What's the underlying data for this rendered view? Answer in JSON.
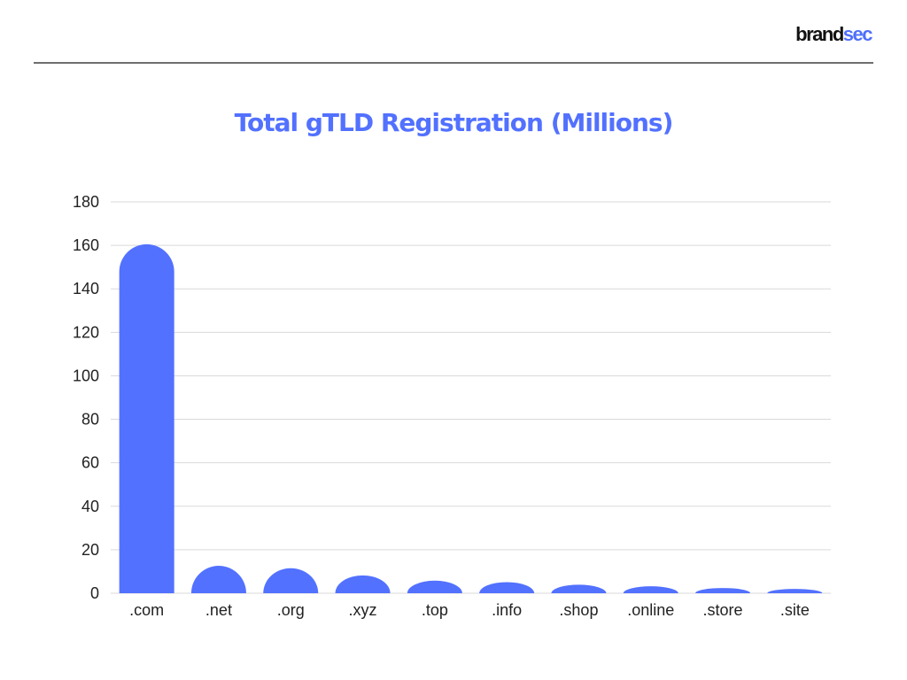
{
  "brand": {
    "part1": "brand",
    "part2": "sec"
  },
  "colors": {
    "accent": "#5271ff",
    "title": "#5271ff",
    "brand_dark": "#111111",
    "brand_accent": "#4f6ffa"
  },
  "chart_data": {
    "type": "bar",
    "title": "Total gTLD Registration (Millions)",
    "xlabel": "",
    "ylabel": "",
    "categories": [
      ".com",
      ".net",
      ".org",
      ".xyz",
      ".top",
      ".info",
      ".shop",
      ".online",
      ".store",
      ".site"
    ],
    "values": [
      160.5,
      12.6,
      11.5,
      8.2,
      5.8,
      5.1,
      3.9,
      3.2,
      2.4,
      2.0
    ],
    "ylim": [
      0,
      180
    ],
    "yticks": [
      0,
      20,
      40,
      60,
      80,
      100,
      120,
      140,
      160,
      180
    ],
    "grid": true,
    "legend": "none",
    "bar_color": "#5271ff"
  }
}
